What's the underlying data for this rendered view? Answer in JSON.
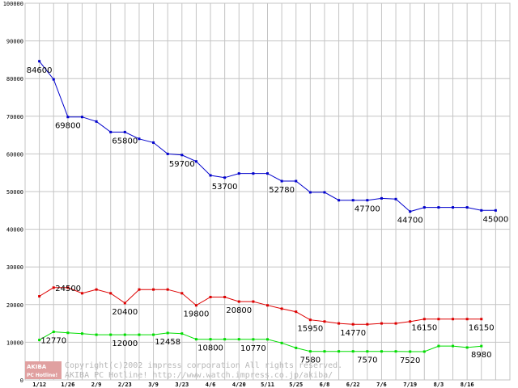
{
  "chart_data": {
    "type": "line",
    "title": "",
    "xlabel": "",
    "ylabel": "",
    "ylim": [
      0,
      100000
    ],
    "yticks": [
      0,
      10000,
      20000,
      30000,
      40000,
      50000,
      60000,
      70000,
      80000,
      90000,
      100000
    ],
    "xtick_labels": [
      "1/12",
      "1/26",
      "2/9",
      "2/23",
      "3/9",
      "3/23",
      "4/6",
      "4/20",
      "5/11",
      "5/25",
      "6/8",
      "6/22",
      "7/6",
      "7/19",
      "8/3",
      "8/16"
    ],
    "grid": true,
    "series": [
      {
        "key": "blue",
        "color": "#0000cc",
        "values": [
          84600,
          79800,
          69800,
          69800,
          68600,
          65800,
          65800,
          64000,
          63000,
          60000,
          59700,
          58000,
          54300,
          53700,
          54800,
          54800,
          54800,
          52780,
          52780,
          49800,
          49800,
          47700,
          47700,
          47700,
          48200,
          48000,
          44700,
          45800,
          45800,
          45800,
          45800,
          45000,
          45000
        ],
        "labels": [
          {
            "i": 0,
            "text": "84600",
            "pos": "below"
          },
          {
            "i": 2,
            "text": "69800",
            "pos": "below"
          },
          {
            "i": 6,
            "text": "65800",
            "pos": "below"
          },
          {
            "i": 10,
            "text": "59700",
            "pos": "below"
          },
          {
            "i": 13,
            "text": "53700",
            "pos": "below"
          },
          {
            "i": 17,
            "text": "52780",
            "pos": "below"
          },
          {
            "i": 23,
            "text": "47700",
            "pos": "below"
          },
          {
            "i": 26,
            "text": "44700",
            "pos": "below"
          },
          {
            "i": 32,
            "text": "45000",
            "pos": "below"
          }
        ]
      },
      {
        "key": "red",
        "color": "#dd0000",
        "values": [
          22200,
          24500,
          24500,
          23000,
          24000,
          23000,
          20400,
          24000,
          24000,
          24000,
          23000,
          19800,
          22000,
          22000,
          20800,
          20800,
          19800,
          18900,
          18100,
          15950,
          15500,
          15000,
          14770,
          14770,
          15000,
          15000,
          15500,
          16150,
          16150,
          16150,
          16150,
          16150
        ],
        "labels": [
          {
            "i": 1,
            "text": "24500",
            "pos": "left"
          },
          {
            "i": 6,
            "text": "20400",
            "pos": "below"
          },
          {
            "i": 11,
            "text": "19800",
            "pos": "below"
          },
          {
            "i": 14,
            "text": "20800",
            "pos": "below"
          },
          {
            "i": 19,
            "text": "15950",
            "pos": "below"
          },
          {
            "i": 22,
            "text": "14770",
            "pos": "below"
          },
          {
            "i": 27,
            "text": "16150",
            "pos": "below"
          },
          {
            "i": 31,
            "text": "16150",
            "pos": "below"
          }
        ]
      },
      {
        "key": "green",
        "color": "#00dd00",
        "values": [
          10600,
          12770,
          12500,
          12300,
          12000,
          12000,
          12000,
          12000,
          12000,
          12458,
          12300,
          10800,
          10800,
          10800,
          10800,
          10770,
          10770,
          9800,
          8500,
          7580,
          7580,
          7580,
          7580,
          7570,
          7570,
          7570,
          7520,
          7520,
          9000,
          9000,
          8600,
          8980
        ],
        "labels": [
          {
            "i": 1,
            "text": "12770",
            "pos": "below"
          },
          {
            "i": 6,
            "text": "12000",
            "pos": "below"
          },
          {
            "i": 9,
            "text": "12458",
            "pos": "below"
          },
          {
            "i": 12,
            "text": "10800",
            "pos": "below"
          },
          {
            "i": 15,
            "text": "10770",
            "pos": "below"
          },
          {
            "i": 19,
            "text": "7580",
            "pos": "below"
          },
          {
            "i": 23,
            "text": "7570",
            "pos": "below"
          },
          {
            "i": 26,
            "text": "7520",
            "pos": "below"
          },
          {
            "i": 31,
            "text": "8980",
            "pos": "below"
          }
        ]
      }
    ]
  },
  "watermark": {
    "logo_top": "AKIBA",
    "logo_bottom": "PC Hotline!",
    "line1": "Copyright(c)2002 impress corporation All rights reserved.",
    "line2": "AKIBA PC Hotline! http://www.watch.impress.co.jp/akiba/",
    "logo_color": "#e0a0a0"
  }
}
